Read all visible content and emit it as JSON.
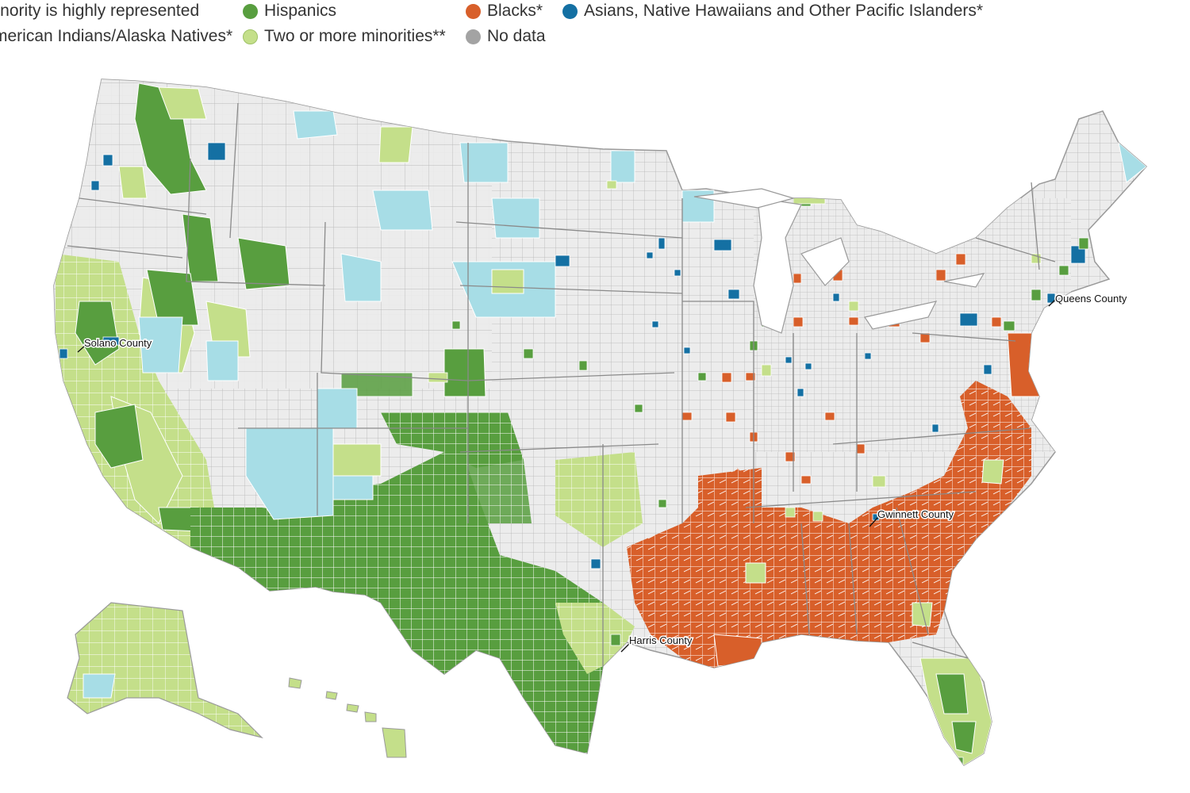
{
  "legend": {
    "items": [
      {
        "label": "minority is highly represented",
        "color": "#e8e8e8"
      },
      {
        "label": "Hispanics",
        "color": "#589e3f"
      },
      {
        "label": "Blacks*",
        "color": "#d85f2a"
      },
      {
        "label": "Asians, Native  Hawaiians and Other Pacific Islanders*",
        "color": "#1470a3"
      },
      {
        "label": "American Indians/Alaska Natives*",
        "color": "#a7dde6"
      },
      {
        "label": "Two or more minorities**",
        "color": "#c4df8a"
      },
      {
        "label": "No data",
        "color": "#a3a3a3"
      }
    ]
  },
  "callouts": {
    "solano": "Solano County",
    "queens": "Queens County",
    "gwinnett": "Gwinnett County",
    "harris": "Harris County"
  },
  "colors": {
    "base": "#ececec",
    "border": "#b5b5b5",
    "state_border": "#8a8a8a"
  }
}
